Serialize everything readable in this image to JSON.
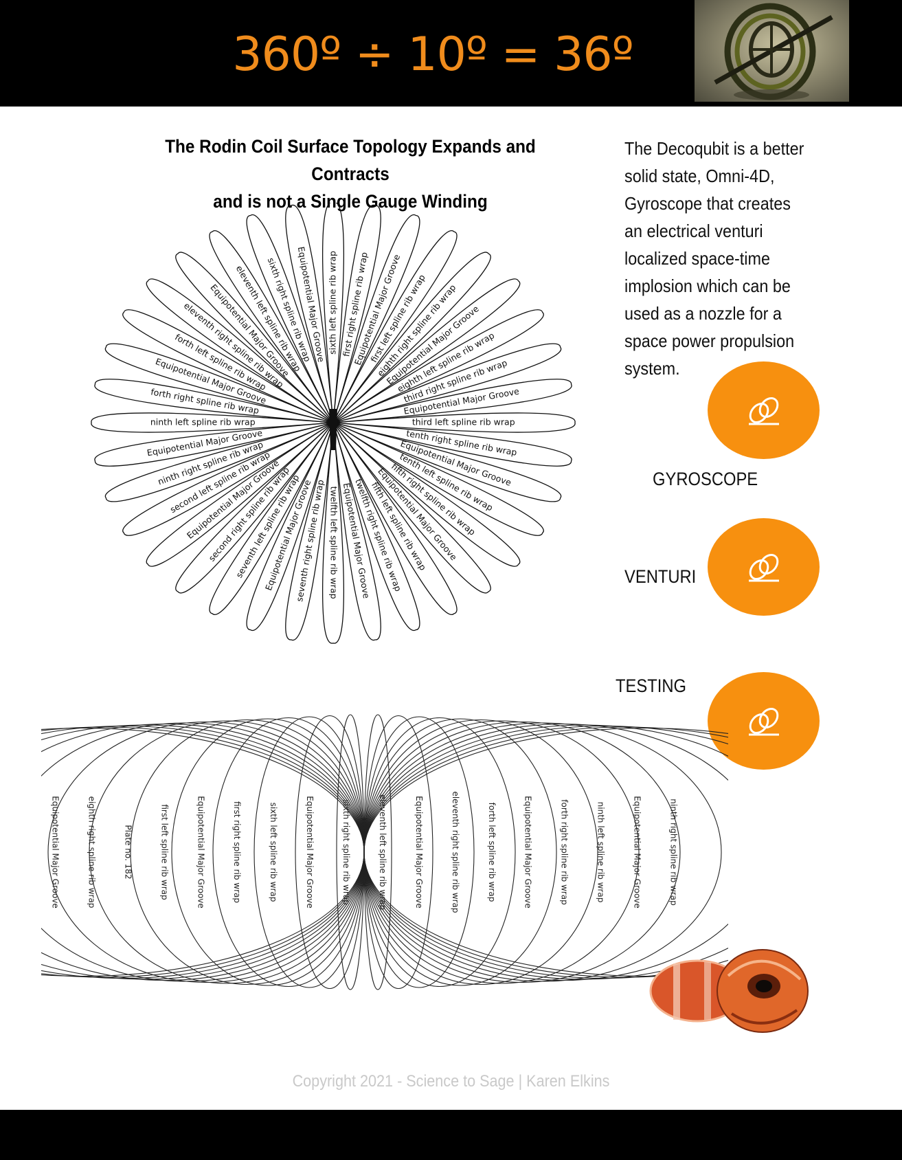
{
  "header": {
    "equation": "360º ÷ 10º = 36º"
  },
  "diagram": {
    "title_line1": "The Rodin Coil Surface Topology Expands and Contracts",
    "title_line2": "and is not a Single Gauge Winding",
    "top_labels": [
      "sixth left spline rib wrap",
      "first right spline rib wrap",
      "Equipotential Major Groove",
      "first left spline rib wrap",
      "eighth right spline rib wrap",
      "Equipotential Major Groove",
      "eighth left spline rib wrap",
      "third right spline rib wrap",
      "Equipotential Major Groove",
      "third left spline rib wrap",
      "tenth right spline rib wrap",
      "Equipotential Major Groove",
      "tenth left spline rib wrap",
      "fifth right spline rib wrap",
      "Equipotential Major Groove",
      "fifth left spline rib wrap",
      "twelfth right spline rib wrap",
      "Equipotential Major Groove",
      "twelfth left spline rib wrap",
      "seventh right spline rib wrap",
      "Equipotential Major Groove",
      "seventh left spline rib wrap",
      "second right spline rib wrap",
      "Equipotential Major Groove",
      "second left spline rib wrap",
      "ninth right spline rib wrap",
      "Equipotential Major Groove",
      "ninth left spline rib wrap",
      "forth right spline rib wrap",
      "Equipotential Major Groove",
      "forth left spline rib wrap",
      "eleventh right spline rib wrap",
      "Equipotential Major Groove",
      "eleventh left spline rib wrap",
      "sixth right spline rib wrap",
      "Equipotential Major Groove"
    ],
    "bottom_labels": [
      "Equipotential Major Groove",
      "eighth right spline rib wrap",
      "Plate no. 182",
      "first left spline rib wrap",
      "Equipotential Major Groove",
      "first right spline rib wrap",
      "sixth left spline rib wrap",
      "Equipotential Major Groove",
      "sixth right spline rib wrap",
      "eleventh left spline rib wrap",
      "Equipotential Major Groove",
      "eleventh right spline rib wrap",
      "forth left spline rib wrap",
      "Equipotential Major Groove",
      "forth right spline rib wrap",
      "ninth left spline rib wrap",
      "Equipotential Major Groove",
      "ninth right spline rib wrap"
    ]
  },
  "description": "The Decoqubit  is a  better solid state, Omni-4D, Gyroscope that creates an electrical venturi localized space-time implosion which can be used as a nozzle for a space power propulsion  system.",
  "links": [
    {
      "label": "GYROSCOPE",
      "icon": "link-icon"
    },
    {
      "label": "VENTURI",
      "icon": "link-icon"
    },
    {
      "label": "TESTING",
      "icon": "link-icon"
    }
  ],
  "colors": {
    "accent": "#f7900f",
    "equation": "#f08c1c",
    "bar": "#000000",
    "copyright": "#c9c9c9"
  },
  "footer": {
    "copyright": "Copyright 2021 - Science to Sage | Karen Elkins"
  }
}
